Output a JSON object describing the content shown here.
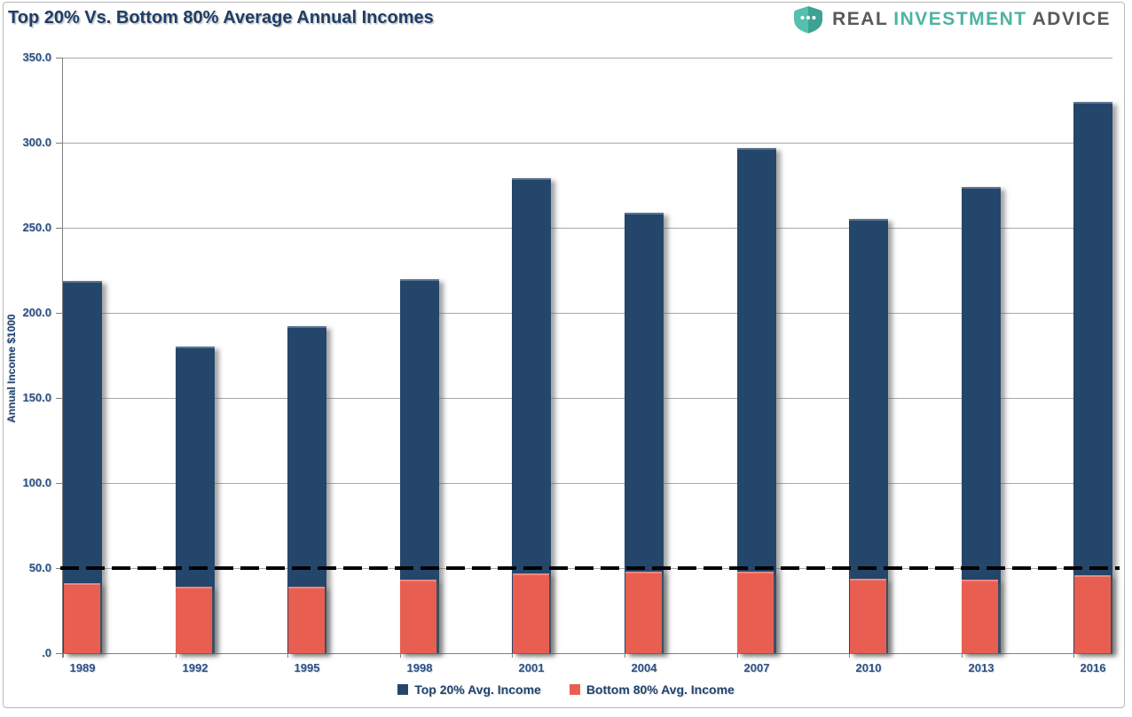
{
  "header": {
    "title": "Top 20% Vs. Bottom 80% Average Annual Incomes",
    "logo": {
      "words": [
        {
          "text": "REAL",
          "color": "#58595b"
        },
        {
          "text": "INVESTMENT",
          "color": "#4db3a2"
        },
        {
          "text": "ADVICE",
          "color": "#58595b"
        }
      ],
      "shield_left_color": "#56bfae",
      "shield_right_color": "#3da293",
      "dots_color": "#ffffff"
    }
  },
  "chart_data": {
    "type": "bar",
    "title": "Top 20% Vs. Bottom 80% Average Annual Incomes",
    "categories": [
      "1989",
      "1992",
      "1995",
      "1998",
      "2001",
      "2004",
      "2007",
      "2010",
      "2013",
      "2016"
    ],
    "series": [
      {
        "name": "Top 20% Avg. Income",
        "color": "#24466b",
        "values": [
          219,
          180,
          192,
          220,
          279,
          259,
          297,
          255,
          274,
          324
        ]
      },
      {
        "name": "Bottom 80% Avg. Income",
        "color": "#e85f51",
        "values": [
          41,
          39,
          39,
          43,
          47,
          48,
          48,
          44,
          43,
          46
        ]
      }
    ],
    "xlabel": "",
    "ylabel": "Annual Income $1000",
    "ylim": [
      0,
      350
    ],
    "ytick_step": 50,
    "ytick_labels_top_to_bottom": [
      "350.0",
      "300.0",
      "250.0",
      "200.0",
      "150.0",
      "100.0",
      "50.0",
      ".0"
    ],
    "reference_line": {
      "value": 50,
      "style": "dashed",
      "color": "#000000"
    },
    "grid": true,
    "legend_position": "bottom",
    "bar_style": "overlapped-front-series-second"
  },
  "colors": {
    "title_text": "#1d3d66",
    "axis_text": "#2a5086",
    "gridline": "#a8a8a8",
    "axis_line": "#7f7f7f",
    "frame_border": "#b9b9b9",
    "background": "#ffffff"
  }
}
